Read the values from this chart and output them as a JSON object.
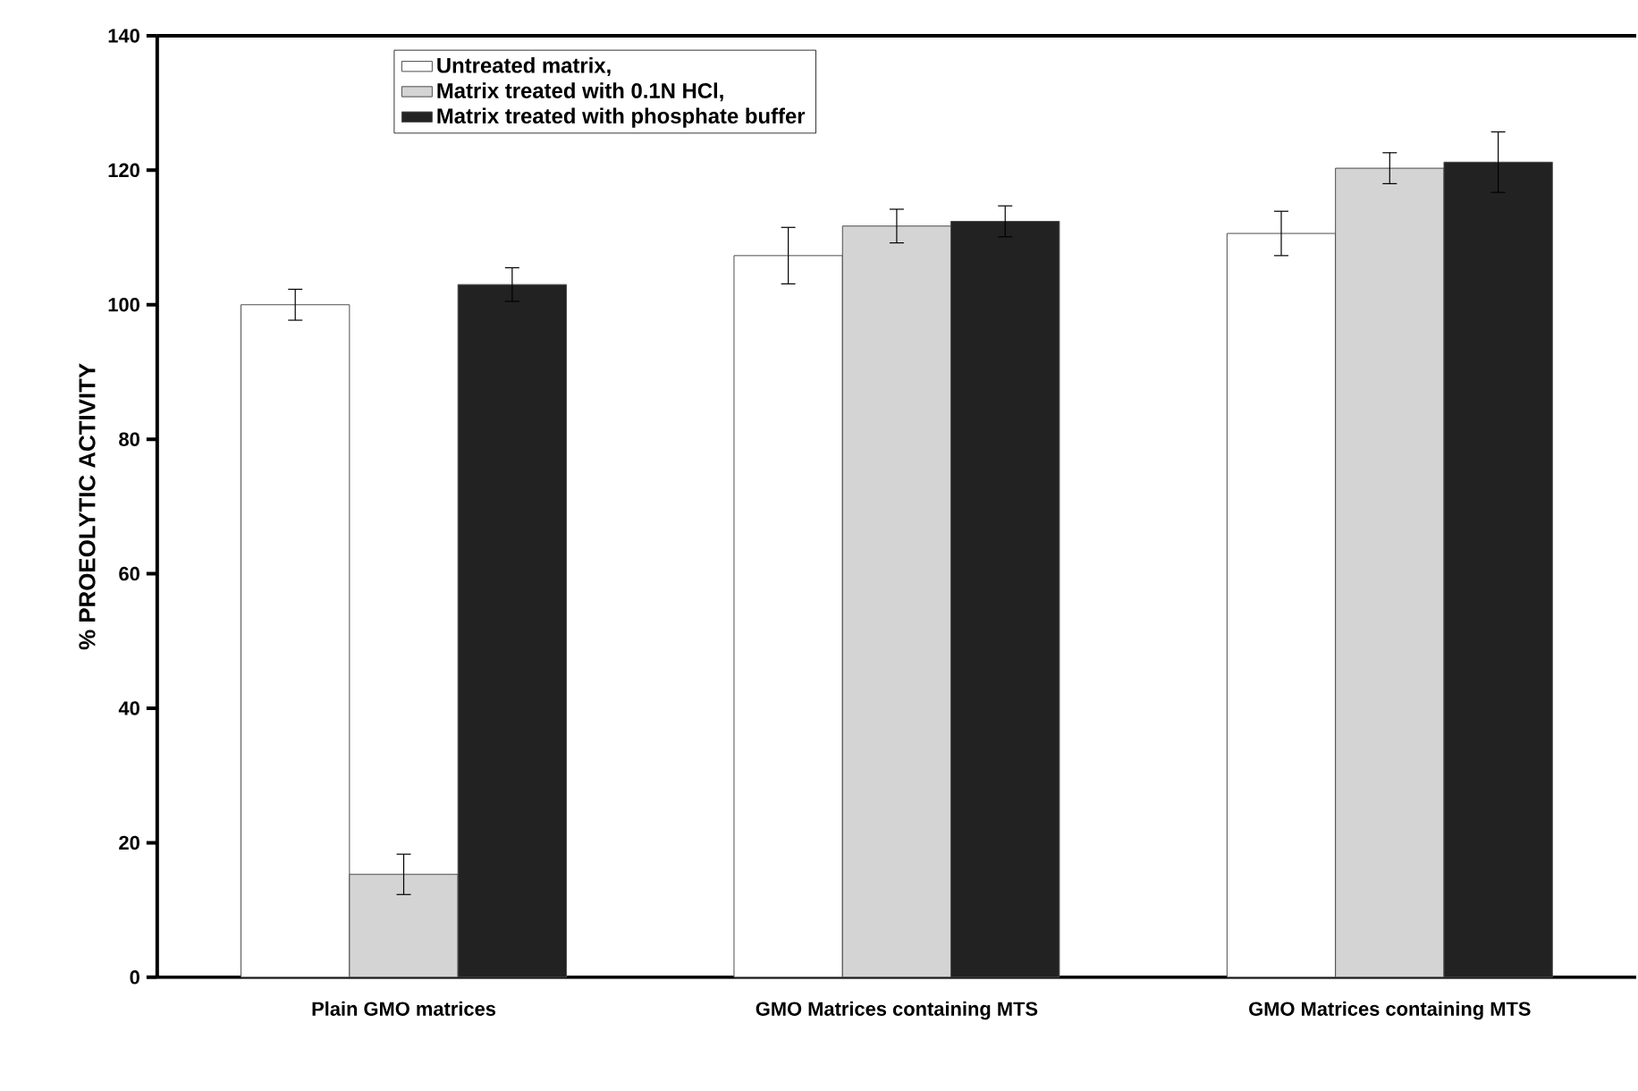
{
  "chart_data": {
    "type": "bar",
    "ylabel": "% PROEOLYTIC ACTIVITY",
    "categories": [
      "Plain GMO matrices",
      "GMO Matrices containing MTS",
      "GMO Matrices containing MTS"
    ],
    "series": [
      {
        "name": "Untreated matrix,",
        "color": "#ffffff",
        "values": [
          100,
          107.3,
          110.6
        ],
        "errors": [
          2.3,
          4.2,
          3.3
        ]
      },
      {
        "name": "Matrix treated with 0.1N HCl,",
        "color": "#d4d4d4",
        "values": [
          15.3,
          111.7,
          120.3
        ],
        "errors": [
          3,
          2.5,
          2.3
        ]
      },
      {
        "name": "Matrix treated with phosphate buffer",
        "color": "#222222",
        "values": [
          103,
          112.4,
          121.2
        ],
        "errors": [
          2.5,
          2.3,
          4.5
        ]
      }
    ],
    "ylim": [
      0,
      140
    ],
    "yticks": [
      0,
      20,
      40,
      60,
      80,
      100,
      120,
      140
    ],
    "legend": "top",
    "grid": false
  }
}
